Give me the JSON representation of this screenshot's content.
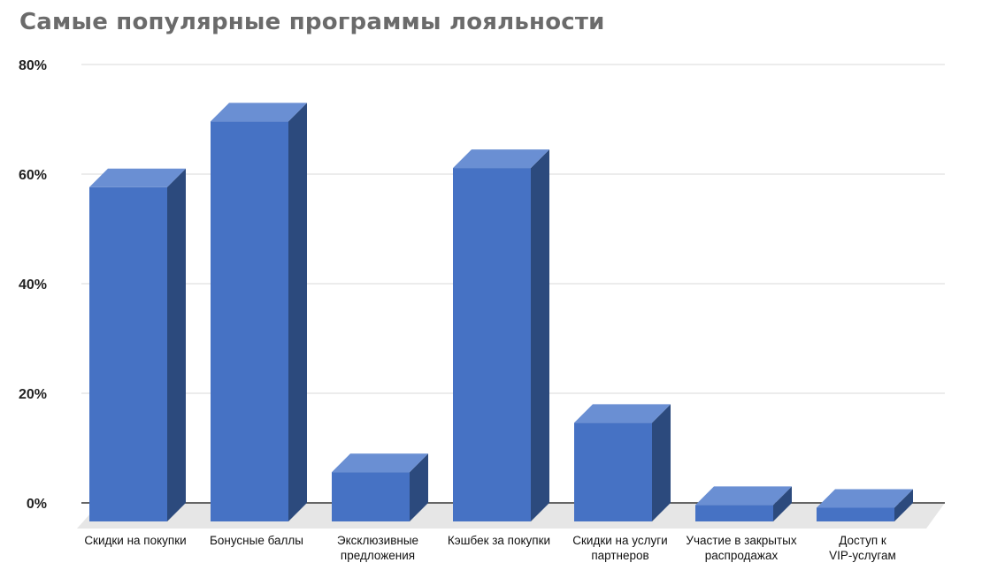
{
  "chart_data": {
    "type": "bar",
    "title": "Самые популярные программы лояльности",
    "xlabel": "",
    "ylabel": "",
    "categories": [
      [
        "Скидки на покупки"
      ],
      [
        "Бонусные баллы"
      ],
      [
        "Эксклюзивные",
        "предложения"
      ],
      [
        "Кэшбек за покупки"
      ],
      [
        "Скидки на услуги",
        "партнеров"
      ],
      [
        "Участие в закрытых",
        "распродажах"
      ],
      [
        "Доступ к",
        "VIP-услугам"
      ]
    ],
    "values": [
      61,
      73,
      9,
      64.5,
      18,
      3,
      2.5
    ],
    "y_ticks": [
      "0%",
      "20%",
      "40%",
      "60%",
      "80%"
    ],
    "ylim": [
      0,
      80
    ],
    "grid": true,
    "legend": "none",
    "style": "3d-column",
    "colors": {
      "front": "#4672c4",
      "side": "#2c4a7d",
      "top": "#6a8fd3",
      "grid": "#d9d9d9",
      "axis": "#333333",
      "floor": "#e6e6e6"
    }
  }
}
